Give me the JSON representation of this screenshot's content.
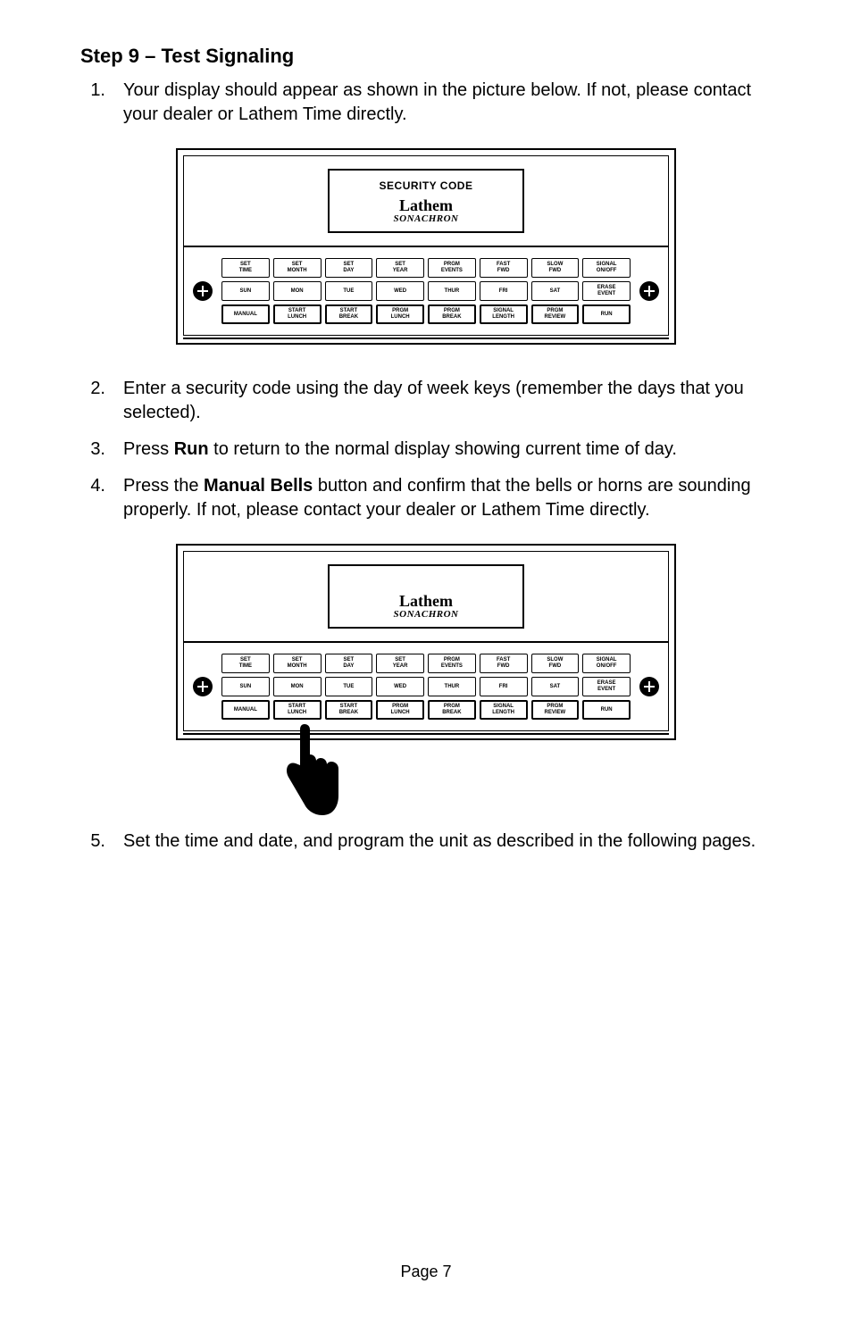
{
  "heading": "Step 9 – Test Signaling",
  "steps": [
    {
      "num": "1.",
      "html": "Your display should appear as shown in the picture below.  If not, please contact your dealer or Lathem Time directly."
    },
    {
      "num": "2.",
      "html": "Enter a security code using the day of week keys (remember the days that you selected)."
    },
    {
      "num": "3.",
      "html": "Press <b>Run</b> to return to the normal display showing current time of day."
    },
    {
      "num": "4.",
      "html": "Press the <b>Manual Bells</b> button and confirm that the bells or horns are sounding properly.    If not, please contact your dealer or Lathem Time directly."
    },
    {
      "num": "5.",
      "html": "Set the time and date, and program the unit as described in the following pages."
    }
  ],
  "device": {
    "display_label_1": "SECURITY CODE",
    "display_label_2": "",
    "logo_script": "Lathem",
    "logo_sub": "SONACHRON",
    "rows": [
      [
        "SET\nTIME",
        "SET\nMONTH",
        "SET\nDAY",
        "SET\nYEAR",
        "PRGM\nEVENTS",
        "FAST\nFWD",
        "SLOW\nFWD",
        "SIGNAL\nON/OFF"
      ],
      [
        "SUN",
        "MON",
        "TUE",
        "WED",
        "THUR",
        "FRI",
        "SAT",
        "ERASE\nEVENT"
      ],
      [
        "MANUAL",
        "START\nLUNCH",
        "START\nBREAK",
        "PRGM\nLUNCH",
        "PRGM\nBREAK",
        "SIGNAL\nLENGTH",
        "PRGM\nREVIEW",
        "RUN"
      ]
    ],
    "highlight_row3": [
      true,
      true,
      true,
      true,
      true,
      true,
      true,
      true
    ]
  },
  "page_label": "Page 7",
  "colors": {
    "text": "#000000",
    "bg": "#ffffff",
    "border": "#000000"
  }
}
